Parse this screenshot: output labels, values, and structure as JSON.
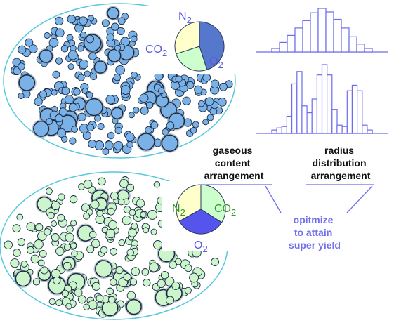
{
  "top_pie": {
    "labels": {
      "n2": "N2",
      "co2": "CO2",
      "o2": "O2"
    },
    "slices": [
      {
        "name": "O2",
        "share": 0.45,
        "color": "#5577cc"
      },
      {
        "name": "CO2",
        "share": 0.25,
        "color": "#ccffcc"
      },
      {
        "name": "N2",
        "share": 0.3,
        "color": "#ffffcc"
      }
    ]
  },
  "bottom_pie": {
    "labels": {
      "n2": "N2",
      "co2": "CO2",
      "o2": "O2"
    },
    "slices": [
      {
        "name": "CO2",
        "share": 0.34,
        "color": "#ccffcc"
      },
      {
        "name": "O2",
        "share": 0.33,
        "color": "#5555ee"
      },
      {
        "name": "N2",
        "share": 0.33,
        "color": "#ffffcc"
      }
    ]
  },
  "hist_top": {
    "values": [
      0.08,
      0.22,
      0.38,
      0.55,
      0.72,
      0.9,
      1.0,
      0.92,
      0.75,
      0.55,
      0.35,
      0.18,
      0.08
    ]
  },
  "hist_bottom": {
    "values": [
      0.05,
      0.08,
      0.1,
      0.25,
      0.72,
      0.9,
      0.4,
      0.3,
      0.5,
      0.85,
      1.0,
      0.85,
      0.35,
      0.12,
      0.1,
      0.62,
      0.7,
      0.62,
      0.12,
      0.05
    ]
  },
  "labels": {
    "left": [
      "gaseous",
      "content",
      "arrangement"
    ],
    "right": [
      "radius",
      "distribution",
      "arrangement"
    ],
    "center": [
      "opitmize",
      "to attain",
      "super yield"
    ]
  },
  "colors": {
    "ellipse_outline": "#55c8dd",
    "top_bubble": "#7ab2e8",
    "bottom_bubble": "#ccf5cc",
    "bubble_stroke": "#1a2a44",
    "histogram": "#6c6cf0",
    "connector": "#6c6cf0"
  }
}
